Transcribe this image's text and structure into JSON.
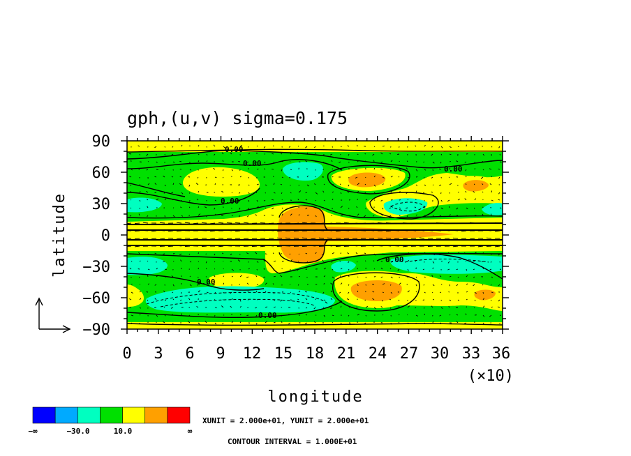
{
  "chart_data": {
    "type": "heatmap",
    "title": "gph,(u,v) sigma=0.175",
    "xlabel": "longitude",
    "ylabel": "latitude",
    "x_ticks": [
      "0",
      "3",
      "6",
      "9",
      "12",
      "15",
      "18",
      "21",
      "24",
      "27",
      "30",
      "33",
      "36"
    ],
    "x_multiplier": "(×10)",
    "xlim": [
      0,
      360
    ],
    "y_ticks": [
      "90",
      "60",
      "30",
      "0",
      "−30",
      "−60",
      "−90"
    ],
    "ylim": [
      -90,
      90
    ],
    "contour_labels": [
      "0.00",
      "0.00",
      "0.00",
      "0.00",
      "0.00",
      "0.00",
      "0.00"
    ],
    "colorbar": {
      "colors": [
        "#0000ff",
        "#00aaff",
        "#00ffc0",
        "#00e000",
        "#ffff00",
        "#ffa000",
        "#ff0000"
      ],
      "tick_labels": [
        "−∞",
        "−30.0",
        "10.0",
        "∞"
      ]
    },
    "unit_note": "XUNIT = 2.000e+01, YUNIT = 2.000e+01",
    "contour_note": "CONTOUR INTERVAL = 1.000E+01",
    "colors": {
      "cyan": "#00ffc0",
      "green": "#00e000",
      "yellow": "#ffff00",
      "orange": "#ffa000"
    }
  }
}
